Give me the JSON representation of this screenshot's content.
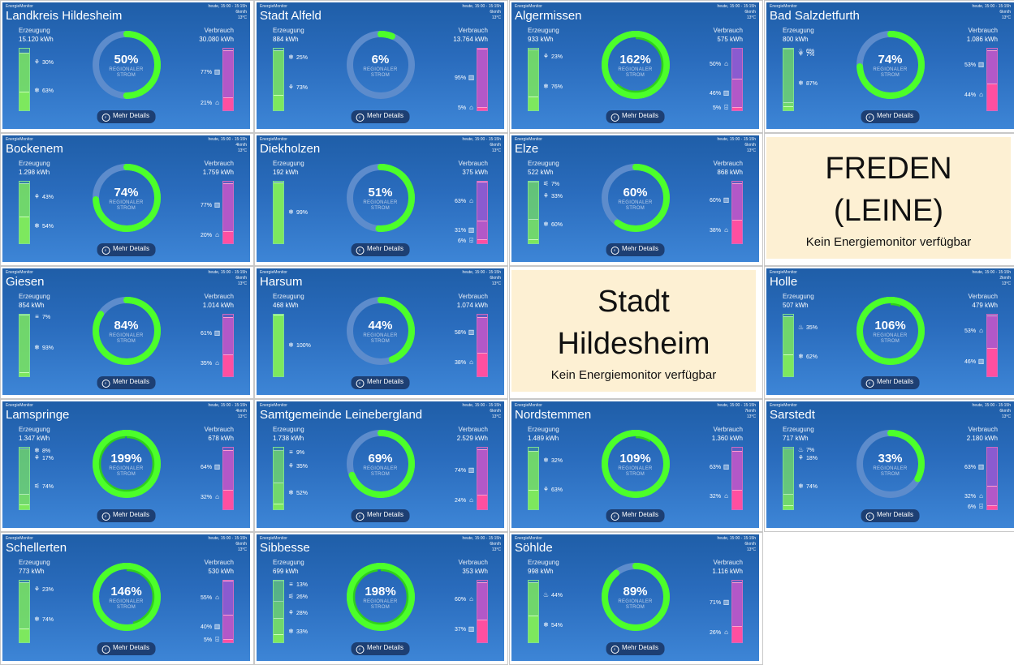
{
  "common": {
    "brand": "EnergieMonitor",
    "time": "heute, 15:00 - 15:15h",
    "erzeugung_label": "Erzeugung",
    "verbrauch_label": "Verbrauch",
    "center_sub_1": "REGIONALER",
    "center_sub_2": "STROM",
    "details_label": "Mehr Details",
    "na_message": "Kein Energiemonitor verfügbar",
    "gen_color": "#7de85e",
    "con_color": "#ff4fa0",
    "ring_color": "#4cff2a",
    "ring_track": "#5d8ccc"
  },
  "tiles": [
    {
      "title": "Landkreis Hildesheim",
      "wind": "6km/h",
      "temp": "13°C",
      "gen": "15.120 kWh",
      "con": "30.080 kWh",
      "percent": 50,
      "gen_left": [
        {
          "icon": "wind",
          "pct": "63%",
          "f": 0.63
        },
        {
          "icon": "solar",
          "pct": "30%",
          "f": 0.3
        }
      ],
      "con_right": [
        {
          "icon": "industry",
          "pct": "77%",
          "f": 0.77
        },
        {
          "icon": "home",
          "pct": "21%",
          "f": 0.21
        }
      ]
    },
    {
      "title": "Stadt Alfeld",
      "wind": "6km/h",
      "temp": "13°C",
      "gen": "884 kWh",
      "con": "13.764 kWh",
      "percent": 6,
      "gen_left": [
        {
          "icon": "solar",
          "pct": "73%",
          "f": 0.73
        },
        {
          "icon": "wind",
          "pct": "25%",
          "f": 0.25
        }
      ],
      "con_right": [
        {
          "icon": "industry",
          "pct": "95%",
          "f": 0.95
        },
        {
          "icon": "home",
          "pct": "5%",
          "f": 0.05
        }
      ]
    },
    {
      "title": "Algermissen",
      "wind": "6km/h",
      "temp": "13°C",
      "gen": "933 kWh",
      "con": "575 kWh",
      "percent": 162,
      "gen_left": [
        {
          "icon": "wind",
          "pct": "76%",
          "f": 0.76
        },
        {
          "icon": "solar",
          "pct": "23%",
          "f": 0.23
        }
      ],
      "con_right": [
        {
          "icon": "home",
          "pct": "50%",
          "f": 0.5
        },
        {
          "icon": "industry",
          "pct": "46%",
          "f": 0.46
        },
        {
          "icon": "farm",
          "pct": "5%",
          "f": 0.05
        }
      ]
    },
    {
      "title": "Bad Salzdetfurth",
      "wind": "6km/h",
      "temp": "13°C",
      "gen": "800 kWh",
      "con": "1.086 kWh",
      "percent": 74,
      "gen_left": [
        {
          "icon": "wind",
          "pct": "87%",
          "f": 0.87
        },
        {
          "icon": "solar",
          "pct": "7%",
          "f": 0.07
        },
        {
          "icon": "bio",
          "pct": "6%",
          "f": 0.06
        }
      ],
      "con_right": [
        {
          "icon": "industry",
          "pct": "53%",
          "f": 0.53
        },
        {
          "icon": "home",
          "pct": "44%",
          "f": 0.44
        }
      ]
    },
    {
      "title": "Bockenem",
      "wind": "4km/h",
      "temp": "13°C",
      "gen": "1.298 kWh",
      "con": "1.759 kWh",
      "percent": 74,
      "gen_left": [
        {
          "icon": "wind",
          "pct": "54%",
          "f": 0.54
        },
        {
          "icon": "solar",
          "pct": "43%",
          "f": 0.43
        }
      ],
      "con_right": [
        {
          "icon": "industry",
          "pct": "77%",
          "f": 0.77
        },
        {
          "icon": "home",
          "pct": "20%",
          "f": 0.2
        }
      ]
    },
    {
      "title": "Diekholzen",
      "wind": "6km/h",
      "temp": "13°C",
      "gen": "192 kWh",
      "con": "375 kWh",
      "percent": 51,
      "gen_left": [
        {
          "icon": "wind",
          "pct": "99%",
          "f": 0.99
        }
      ],
      "con_right": [
        {
          "icon": "home",
          "pct": "63%",
          "f": 0.63
        },
        {
          "icon": "industry",
          "pct": "31%",
          "f": 0.31
        },
        {
          "icon": "farm",
          "pct": "6%",
          "f": 0.06
        }
      ]
    },
    {
      "title": "Elze",
      "wind": "6km/h",
      "temp": "13°C",
      "gen": "522 kWh",
      "con": "868 kWh",
      "percent": 60,
      "gen_left": [
        {
          "icon": "wind",
          "pct": "60%",
          "f": 0.6
        },
        {
          "icon": "solar",
          "pct": "33%",
          "f": 0.33
        },
        {
          "icon": "water",
          "pct": "7%",
          "f": 0.07
        }
      ],
      "con_right": [
        {
          "icon": "industry",
          "pct": "60%",
          "f": 0.6
        },
        {
          "icon": "home",
          "pct": "38%",
          "f": 0.38
        }
      ]
    },
    {
      "na": true,
      "lines": [
        "FREDEN (LEINE)"
      ]
    },
    {
      "title": "Giesen",
      "wind": "6km/h",
      "temp": "13°C",
      "gen": "854 kWh",
      "con": "1.014 kWh",
      "percent": 84,
      "gen_left": [
        {
          "icon": "wind",
          "pct": "93%",
          "f": 0.93
        },
        {
          "icon": "gas",
          "pct": "7%",
          "f": 0.07
        }
      ],
      "con_right": [
        {
          "icon": "industry",
          "pct": "61%",
          "f": 0.61
        },
        {
          "icon": "home",
          "pct": "35%",
          "f": 0.35
        }
      ]
    },
    {
      "title": "Harsum",
      "wind": "6km/h",
      "temp": "13°C",
      "gen": "468 kWh",
      "con": "1.074 kWh",
      "percent": 44,
      "gen_left": [
        {
          "icon": "wind",
          "pct": "100%",
          "f": 1.0
        }
      ],
      "con_right": [
        {
          "icon": "industry",
          "pct": "58%",
          "f": 0.58
        },
        {
          "icon": "home",
          "pct": "38%",
          "f": 0.38
        }
      ]
    },
    {
      "na": true,
      "lines": [
        "Stadt",
        "Hildesheim"
      ]
    },
    {
      "title": "Holle",
      "wind": "2km/h",
      "temp": "13°C",
      "gen": "507 kWh",
      "con": "479 kWh",
      "percent": 106,
      "gen_left": [
        {
          "icon": "wind",
          "pct": "62%",
          "f": 0.62
        },
        {
          "icon": "bio",
          "pct": "35%",
          "f": 0.35
        }
      ],
      "con_right": [
        {
          "icon": "home",
          "pct": "53%",
          "f": 0.53
        },
        {
          "icon": "industry",
          "pct": "46%",
          "f": 0.46
        }
      ]
    },
    {
      "title": "Lamspringe",
      "wind": "4km/h",
      "temp": "13°C",
      "gen": "1.347 kWh",
      "con": "678 kWh",
      "percent": 199,
      "gen_left": [
        {
          "icon": "water",
          "pct": "74%",
          "f": 0.74
        },
        {
          "icon": "solar",
          "pct": "17%",
          "f": 0.17
        },
        {
          "icon": "wind",
          "pct": "8%",
          "f": 0.08
        }
      ],
      "con_right": [
        {
          "icon": "industry",
          "pct": "64%",
          "f": 0.64
        },
        {
          "icon": "home",
          "pct": "32%",
          "f": 0.32
        }
      ]
    },
    {
      "title": "Samtgemeinde Leinebergland",
      "wind": "6km/h",
      "temp": "13°C",
      "gen": "1.738 kWh",
      "con": "2.529 kWh",
      "percent": 69,
      "gen_left": [
        {
          "icon": "wind",
          "pct": "52%",
          "f": 0.52
        },
        {
          "icon": "solar",
          "pct": "35%",
          "f": 0.35
        },
        {
          "icon": "gas",
          "pct": "9%",
          "f": 0.09
        }
      ],
      "con_right": [
        {
          "icon": "industry",
          "pct": "74%",
          "f": 0.74
        },
        {
          "icon": "home",
          "pct": "24%",
          "f": 0.24
        }
      ]
    },
    {
      "title": "Nordstemmen",
      "wind": "7km/h",
      "temp": "13°C",
      "gen": "1.489 kWh",
      "con": "1.360 kWh",
      "percent": 109,
      "gen_left": [
        {
          "icon": "solar",
          "pct": "63%",
          "f": 0.63
        },
        {
          "icon": "wind",
          "pct": "32%",
          "f": 0.32
        }
      ],
      "con_right": [
        {
          "icon": "industry",
          "pct": "63%",
          "f": 0.63
        },
        {
          "icon": "home",
          "pct": "32%",
          "f": 0.32
        }
      ]
    },
    {
      "title": "Sarstedt",
      "wind": "6km/h",
      "temp": "13°C",
      "gen": "717 kWh",
      "con": "2.180 kWh",
      "percent": 33,
      "gen_left": [
        {
          "icon": "wind",
          "pct": "74%",
          "f": 0.74
        },
        {
          "icon": "solar",
          "pct": "18%",
          "f": 0.18
        },
        {
          "icon": "bio",
          "pct": "7%",
          "f": 0.07
        }
      ],
      "con_right": [
        {
          "icon": "industry",
          "pct": "63%",
          "f": 0.63
        },
        {
          "icon": "home",
          "pct": "32%",
          "f": 0.32
        },
        {
          "icon": "farm",
          "pct": "6%",
          "f": 0.06
        }
      ]
    },
    {
      "title": "Schellerten",
      "wind": "6km/h",
      "temp": "13°C",
      "gen": "773 kWh",
      "con": "530 kWh",
      "percent": 146,
      "gen_left": [
        {
          "icon": "wind",
          "pct": "74%",
          "f": 0.74
        },
        {
          "icon": "solar",
          "pct": "23%",
          "f": 0.23
        }
      ],
      "con_right": [
        {
          "icon": "home",
          "pct": "55%",
          "f": 0.55
        },
        {
          "icon": "industry",
          "pct": "40%",
          "f": 0.4
        },
        {
          "icon": "farm",
          "pct": "5%",
          "f": 0.05
        }
      ]
    },
    {
      "title": "Sibbesse",
      "wind": "6km/h",
      "temp": "13°C",
      "gen": "699 kWh",
      "con": "353 kWh",
      "percent": 198,
      "gen_left": [
        {
          "icon": "wind",
          "pct": "33%",
          "f": 0.33
        },
        {
          "icon": "solar",
          "pct": "28%",
          "f": 0.28
        },
        {
          "icon": "water",
          "pct": "26%",
          "f": 0.26
        },
        {
          "icon": "gas",
          "pct": "13%",
          "f": 0.13
        }
      ],
      "con_right": [
        {
          "icon": "home",
          "pct": "60%",
          "f": 0.6
        },
        {
          "icon": "industry",
          "pct": "37%",
          "f": 0.37
        }
      ]
    },
    {
      "title": "Söhlde",
      "wind": "6km/h",
      "temp": "13°C",
      "gen": "998 kWh",
      "con": "1.116 kWh",
      "percent": 89,
      "gen_left": [
        {
          "icon": "wind",
          "pct": "54%",
          "f": 0.54
        },
        {
          "icon": "bio",
          "pct": "44%",
          "f": 0.44
        }
      ],
      "con_right": [
        {
          "icon": "industry",
          "pct": "71%",
          "f": 0.71
        },
        {
          "icon": "home",
          "pct": "26%",
          "f": 0.26
        }
      ]
    }
  ]
}
